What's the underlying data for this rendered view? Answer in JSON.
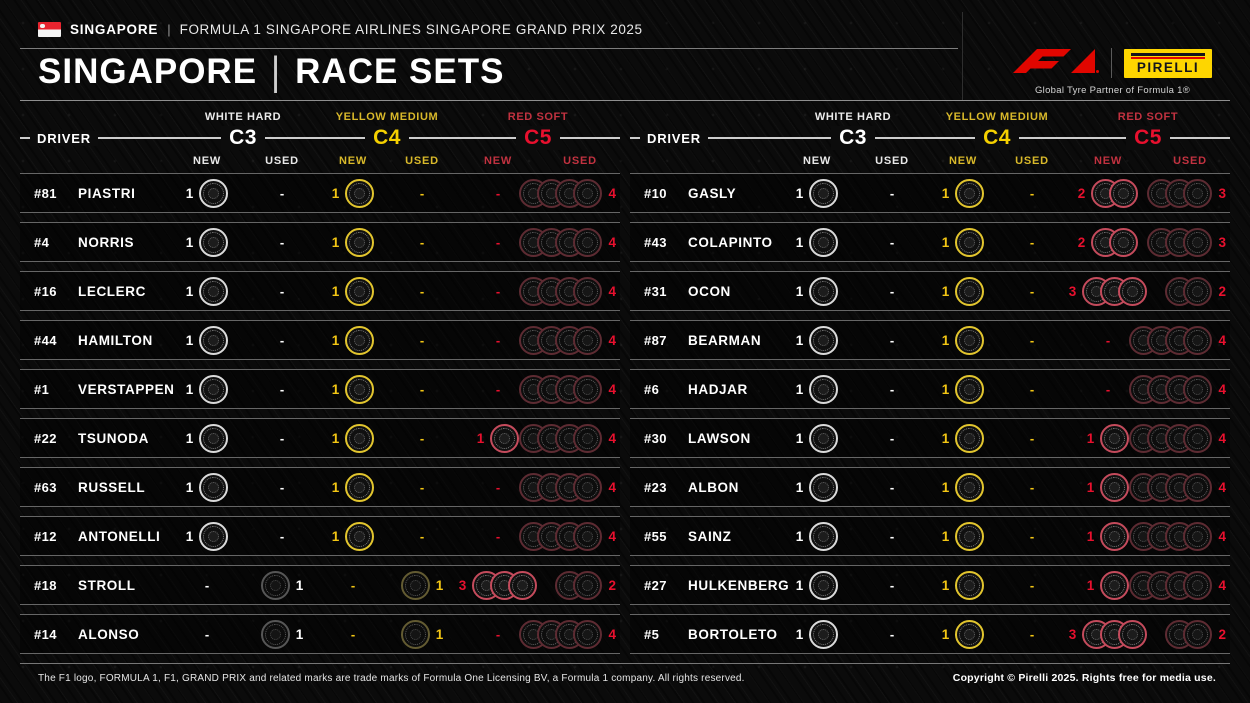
{
  "header": {
    "country": "SINGAPORE",
    "separator": "|",
    "event": "FORMULA 1 SINGAPORE AIRLINES SINGAPORE GRAND PRIX 2025",
    "f1_logo": "F1",
    "pirelli_logo": "PIRELLI",
    "pirelli_tagline": "Global Tyre Partner of Formula 1®"
  },
  "title": {
    "left": "SINGAPORE",
    "divider": "|",
    "right": "RACE SETS"
  },
  "columns": {
    "driver_label": "DRIVER",
    "new_label": "NEW",
    "used_label": "USED",
    "empty_cell": "-",
    "compounds": [
      {
        "id": "c3",
        "name": "WHITE HARD",
        "code": "C3",
        "color": "#ffffff"
      },
      {
        "id": "c4",
        "name": "YELLOW MEDIUM",
        "code": "C4",
        "color": "#f5d000"
      },
      {
        "id": "c5",
        "name": "RED SOFT",
        "code": "C5",
        "color": "#e8102e"
      }
    ]
  },
  "tables": {
    "left": {
      "rows": [
        {
          "number": "#81",
          "name": "PIASTRI",
          "c3_new": 1,
          "c3_used": 0,
          "c4_new": 1,
          "c4_used": 0,
          "c5_new": 0,
          "c5_used": 4
        },
        {
          "number": "#4",
          "name": "NORRIS",
          "c3_new": 1,
          "c3_used": 0,
          "c4_new": 1,
          "c4_used": 0,
          "c5_new": 0,
          "c5_used": 4
        },
        {
          "number": "#16",
          "name": "LECLERC",
          "c3_new": 1,
          "c3_used": 0,
          "c4_new": 1,
          "c4_used": 0,
          "c5_new": 0,
          "c5_used": 4
        },
        {
          "number": "#44",
          "name": "HAMILTON",
          "c3_new": 1,
          "c3_used": 0,
          "c4_new": 1,
          "c4_used": 0,
          "c5_new": 0,
          "c5_used": 4
        },
        {
          "number": "#1",
          "name": "VERSTAPPEN",
          "c3_new": 1,
          "c3_used": 0,
          "c4_new": 1,
          "c4_used": 0,
          "c5_new": 0,
          "c5_used": 4
        },
        {
          "number": "#22",
          "name": "TSUNODA",
          "c3_new": 1,
          "c3_used": 0,
          "c4_new": 1,
          "c4_used": 0,
          "c5_new": 1,
          "c5_used": 4
        },
        {
          "number": "#63",
          "name": "RUSSELL",
          "c3_new": 1,
          "c3_used": 0,
          "c4_new": 1,
          "c4_used": 0,
          "c5_new": 0,
          "c5_used": 4
        },
        {
          "number": "#12",
          "name": "ANTONELLI",
          "c3_new": 1,
          "c3_used": 0,
          "c4_new": 1,
          "c4_used": 0,
          "c5_new": 0,
          "c5_used": 4
        },
        {
          "number": "#18",
          "name": "STROLL",
          "c3_new": 0,
          "c3_used": 1,
          "c4_new": 0,
          "c4_used": 1,
          "c5_new": 3,
          "c5_used": 2
        },
        {
          "number": "#14",
          "name": "ALONSO",
          "c3_new": 0,
          "c3_used": 1,
          "c4_new": 0,
          "c4_used": 1,
          "c5_new": 0,
          "c5_used": 4
        }
      ]
    },
    "right": {
      "rows": [
        {
          "number": "#10",
          "name": "GASLY",
          "c3_new": 1,
          "c3_used": 0,
          "c4_new": 1,
          "c4_used": 0,
          "c5_new": 2,
          "c5_used": 3
        },
        {
          "number": "#43",
          "name": "COLAPINTO",
          "c3_new": 1,
          "c3_used": 0,
          "c4_new": 1,
          "c4_used": 0,
          "c5_new": 2,
          "c5_used": 3
        },
        {
          "number": "#31",
          "name": "OCON",
          "c3_new": 1,
          "c3_used": 0,
          "c4_new": 1,
          "c4_used": 0,
          "c5_new": 3,
          "c5_used": 2
        },
        {
          "number": "#87",
          "name": "BEARMAN",
          "c3_new": 1,
          "c3_used": 0,
          "c4_new": 1,
          "c4_used": 0,
          "c5_new": 0,
          "c5_used": 4
        },
        {
          "number": "#6",
          "name": "HADJAR",
          "c3_new": 1,
          "c3_used": 0,
          "c4_new": 1,
          "c4_used": 0,
          "c5_new": 0,
          "c5_used": 4
        },
        {
          "number": "#30",
          "name": "LAWSON",
          "c3_new": 1,
          "c3_used": 0,
          "c4_new": 1,
          "c4_used": 0,
          "c5_new": 1,
          "c5_used": 4
        },
        {
          "number": "#23",
          "name": "ALBON",
          "c3_new": 1,
          "c3_used": 0,
          "c4_new": 1,
          "c4_used": 0,
          "c5_new": 1,
          "c5_used": 4
        },
        {
          "number": "#55",
          "name": "SAINZ",
          "c3_new": 1,
          "c3_used": 0,
          "c4_new": 1,
          "c4_used": 0,
          "c5_new": 1,
          "c5_used": 4
        },
        {
          "number": "#27",
          "name": "HULKENBERG",
          "c3_new": 1,
          "c3_used": 0,
          "c4_new": 1,
          "c4_used": 0,
          "c5_new": 1,
          "c5_used": 4
        },
        {
          "number": "#5",
          "name": "BORTOLETO",
          "c3_new": 1,
          "c3_used": 0,
          "c4_new": 1,
          "c4_used": 0,
          "c5_new": 3,
          "c5_used": 2
        }
      ]
    }
  },
  "footer": {
    "left": "The F1 logo, FORMULA 1, F1, GRAND PRIX and related marks are trade marks of Formula One Licensing BV, a Formula 1 company. All rights reserved.",
    "right": "Copyright © Pirelli 2025. Rights free for media use."
  },
  "colors": {
    "background": "#0b0b0b",
    "c3_hard": "#ffffff",
    "c4_medium": "#f5d000",
    "c5_soft": "#e8102e",
    "f1_red": "#e10600",
    "pirelli_yellow": "#fed600"
  },
  "chart_data": {
    "type": "table",
    "title": "SINGAPORE | RACE SETS",
    "columns": [
      "Driver",
      "C3 Hard New",
      "C3 Hard Used",
      "C4 Medium New",
      "C4 Medium Used",
      "C5 Soft New",
      "C5 Soft Used"
    ],
    "rows": [
      [
        "#81 PIASTRI",
        1,
        0,
        1,
        0,
        0,
        4
      ],
      [
        "#4 NORRIS",
        1,
        0,
        1,
        0,
        0,
        4
      ],
      [
        "#16 LECLERC",
        1,
        0,
        1,
        0,
        0,
        4
      ],
      [
        "#44 HAMILTON",
        1,
        0,
        1,
        0,
        0,
        4
      ],
      [
        "#1 VERSTAPPEN",
        1,
        0,
        1,
        0,
        0,
        4
      ],
      [
        "#22 TSUNODA",
        1,
        0,
        1,
        0,
        1,
        4
      ],
      [
        "#63 RUSSELL",
        1,
        0,
        1,
        0,
        0,
        4
      ],
      [
        "#12 ANTONELLI",
        1,
        0,
        1,
        0,
        0,
        4
      ],
      [
        "#18 STROLL",
        0,
        1,
        0,
        1,
        3,
        2
      ],
      [
        "#14 ALONSO",
        0,
        1,
        0,
        1,
        0,
        4
      ],
      [
        "#10 GASLY",
        1,
        0,
        1,
        0,
        2,
        3
      ],
      [
        "#43 COLAPINTO",
        1,
        0,
        1,
        0,
        2,
        3
      ],
      [
        "#31 OCON",
        1,
        0,
        1,
        0,
        3,
        2
      ],
      [
        "#87 BEARMAN",
        1,
        0,
        1,
        0,
        0,
        4
      ],
      [
        "#6 HADJAR",
        1,
        0,
        1,
        0,
        0,
        4
      ],
      [
        "#30 LAWSON",
        1,
        0,
        1,
        0,
        1,
        4
      ],
      [
        "#23 ALBON",
        1,
        0,
        1,
        0,
        1,
        4
      ],
      [
        "#55 SAINZ",
        1,
        0,
        1,
        0,
        1,
        4
      ],
      [
        "#27 HULKENBERG",
        1,
        0,
        1,
        0,
        1,
        4
      ],
      [
        "#5 BORTOLETO",
        1,
        0,
        1,
        0,
        3,
        2
      ]
    ]
  }
}
